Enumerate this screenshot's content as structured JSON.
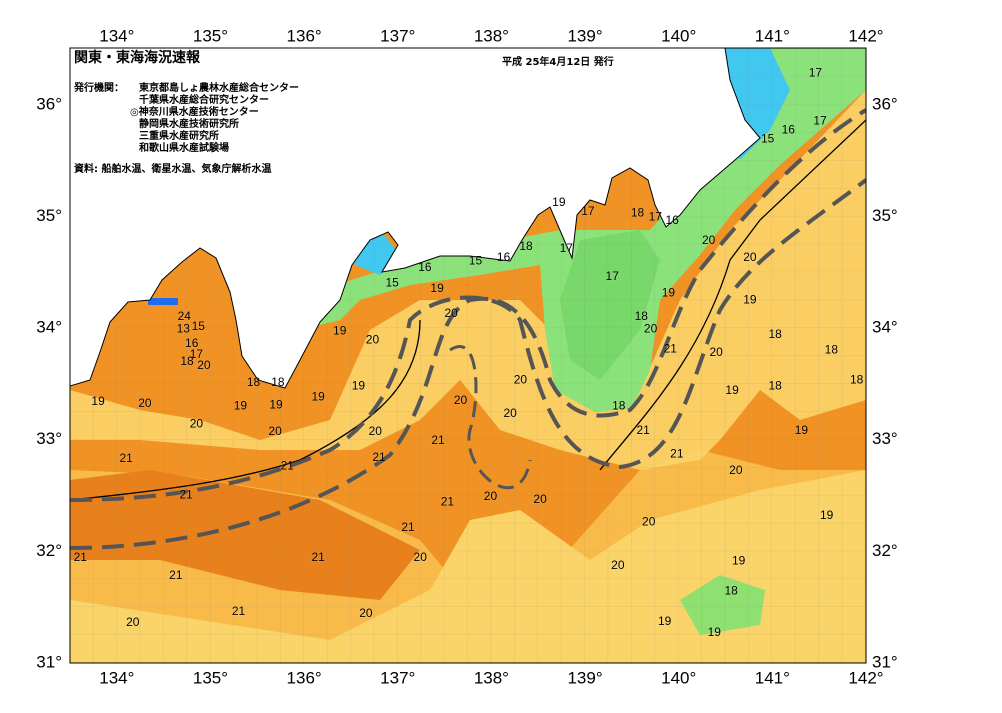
{
  "header": {
    "title": "関東・東海海況速報",
    "date": "平成 25年4月12日 発行",
    "agencies_label": "発行機関：",
    "agencies": [
      "東京都島しょ農林水産総合センター",
      "千葉県水産総合研究センター",
      "◎神奈川県水産技術センター",
      "静岡県水産技術研究所",
      "三重県水産研究所",
      "和歌山県水産試験場"
    ],
    "source": "資料: 船舶水温、衛星水温、気象庁解析水温"
  },
  "map": {
    "xlim": [
      133.5,
      142
    ],
    "ylim": [
      31,
      36.5
    ],
    "xticks": [
      {
        "value": 134,
        "label": "134°"
      },
      {
        "value": 135,
        "label": "135°"
      },
      {
        "value": 136,
        "label": "136°"
      },
      {
        "value": 137,
        "label": "137°"
      },
      {
        "value": 138,
        "label": "138°"
      },
      {
        "value": 139,
        "label": "139°"
      },
      {
        "value": 140,
        "label": "140°"
      },
      {
        "value": 141,
        "label": "141°"
      },
      {
        "value": 142,
        "label": "142°"
      }
    ],
    "yticks": [
      {
        "value": 31,
        "label": "31°"
      },
      {
        "value": 32,
        "label": "32°"
      },
      {
        "value": 33,
        "label": "33°"
      },
      {
        "value": 34,
        "label": "34°"
      },
      {
        "value": 35,
        "label": "35°"
      },
      {
        "value": 36,
        "label": "36°"
      }
    ],
    "contour_labels": [
      {
        "lon": 141.46,
        "lat": 36.28,
        "value": 17
      },
      {
        "lon": 141.17,
        "lat": 35.77,
        "value": 16
      },
      {
        "lon": 141.51,
        "lat": 35.85,
        "value": 17
      },
      {
        "lon": 140.95,
        "lat": 35.69,
        "value": 15
      },
      {
        "lon": 138.72,
        "lat": 35.12,
        "value": 19
      },
      {
        "lon": 139.03,
        "lat": 35.04,
        "value": 17
      },
      {
        "lon": 139.56,
        "lat": 35.03,
        "value": 18
      },
      {
        "lon": 139.75,
        "lat": 34.99,
        "value": 17
      },
      {
        "lon": 139.93,
        "lat": 34.96,
        "value": 16
      },
      {
        "lon": 140.32,
        "lat": 34.78,
        "value": 20
      },
      {
        "lon": 138.8,
        "lat": 34.71,
        "value": 17
      },
      {
        "lon": 138.37,
        "lat": 34.73,
        "value": 18
      },
      {
        "lon": 138.13,
        "lat": 34.63,
        "value": 16
      },
      {
        "lon": 137.83,
        "lat": 34.6,
        "value": 15
      },
      {
        "lon": 137.29,
        "lat": 34.54,
        "value": 16
      },
      {
        "lon": 136.94,
        "lat": 34.4,
        "value": 15
      },
      {
        "lon": 137.42,
        "lat": 34.35,
        "value": 19
      },
      {
        "lon": 140.76,
        "lat": 34.63,
        "value": 20
      },
      {
        "lon": 139.29,
        "lat": 34.46,
        "value": 17
      },
      {
        "lon": 139.89,
        "lat": 34.31,
        "value": 19
      },
      {
        "lon": 140.76,
        "lat": 34.25,
        "value": 19
      },
      {
        "lon": 137.57,
        "lat": 34.13,
        "value": 20
      },
      {
        "lon": 139.6,
        "lat": 34.1,
        "value": 18
      },
      {
        "lon": 139.7,
        "lat": 33.99,
        "value": 20
      },
      {
        "lon": 139.91,
        "lat": 33.81,
        "value": 21
      },
      {
        "lon": 140.4,
        "lat": 33.78,
        "value": 20
      },
      {
        "lon": 141.03,
        "lat": 33.94,
        "value": 18
      },
      {
        "lon": 141.63,
        "lat": 33.8,
        "value": 18
      },
      {
        "lon": 141.9,
        "lat": 33.53,
        "value": 18
      },
      {
        "lon": 141.03,
        "lat": 33.48,
        "value": 18
      },
      {
        "lon": 140.57,
        "lat": 33.44,
        "value": 19
      },
      {
        "lon": 136.38,
        "lat": 33.97,
        "value": 19
      },
      {
        "lon": 136.73,
        "lat": 33.89,
        "value": 20
      },
      {
        "lon": 138.31,
        "lat": 33.53,
        "value": 20
      },
      {
        "lon": 136.58,
        "lat": 33.48,
        "value": 19
      },
      {
        "lon": 136.15,
        "lat": 33.38,
        "value": 19
      },
      {
        "lon": 135.7,
        "lat": 33.31,
        "value": 19
      },
      {
        "lon": 135.32,
        "lat": 33.3,
        "value": 19
      },
      {
        "lon": 135.46,
        "lat": 33.51,
        "value": 18
      },
      {
        "lon": 135.72,
        "lat": 33.51,
        "value": 18
      },
      {
        "lon": 137.67,
        "lat": 33.35,
        "value": 20
      },
      {
        "lon": 139.36,
        "lat": 33.3,
        "value": 18
      },
      {
        "lon": 138.2,
        "lat": 33.23,
        "value": 20
      },
      {
        "lon": 139.62,
        "lat": 33.08,
        "value": 21
      },
      {
        "lon": 141.31,
        "lat": 33.08,
        "value": 19
      },
      {
        "lon": 136.76,
        "lat": 33.07,
        "value": 20
      },
      {
        "lon": 135.69,
        "lat": 33.07,
        "value": 20
      },
      {
        "lon": 134.85,
        "lat": 33.14,
        "value": 20
      },
      {
        "lon": 134.3,
        "lat": 33.32,
        "value": 20
      },
      {
        "lon": 133.8,
        "lat": 33.34,
        "value": 19
      },
      {
        "lon": 137.43,
        "lat": 32.99,
        "value": 21
      },
      {
        "lon": 139.98,
        "lat": 32.87,
        "value": 21
      },
      {
        "lon": 136.8,
        "lat": 32.84,
        "value": 21
      },
      {
        "lon": 135.82,
        "lat": 32.76,
        "value": 21
      },
      {
        "lon": 134.1,
        "lat": 32.83,
        "value": 21
      },
      {
        "lon": 140.61,
        "lat": 32.72,
        "value": 20
      },
      {
        "lon": 134.74,
        "lat": 32.5,
        "value": 21
      },
      {
        "lon": 137.53,
        "lat": 32.44,
        "value": 21
      },
      {
        "lon": 137.99,
        "lat": 32.49,
        "value": 20
      },
      {
        "lon": 138.52,
        "lat": 32.46,
        "value": 20
      },
      {
        "lon": 139.68,
        "lat": 32.26,
        "value": 20
      },
      {
        "lon": 141.58,
        "lat": 32.32,
        "value": 19
      },
      {
        "lon": 137.11,
        "lat": 32.21,
        "value": 21
      },
      {
        "lon": 133.61,
        "lat": 31.94,
        "value": 21
      },
      {
        "lon": 136.15,
        "lat": 31.94,
        "value": 21
      },
      {
        "lon": 137.24,
        "lat": 31.94,
        "value": 20
      },
      {
        "lon": 139.35,
        "lat": 31.87,
        "value": 20
      },
      {
        "lon": 140.64,
        "lat": 31.91,
        "value": 19
      },
      {
        "lon": 134.63,
        "lat": 31.78,
        "value": 21
      },
      {
        "lon": 140.56,
        "lat": 31.64,
        "value": 18
      },
      {
        "lon": 135.3,
        "lat": 31.46,
        "value": 21
      },
      {
        "lon": 136.66,
        "lat": 31.44,
        "value": 20
      },
      {
        "lon": 134.17,
        "lat": 31.36,
        "value": 20
      },
      {
        "lon": 139.85,
        "lat": 31.37,
        "value": 19
      },
      {
        "lon": 140.38,
        "lat": 31.27,
        "value": 19
      },
      {
        "lon": 134.72,
        "lat": 34.1,
        "value": 24
      },
      {
        "lon": 134.71,
        "lat": 33.99,
        "value": 13
      },
      {
        "lon": 134.87,
        "lat": 34.01,
        "value": 15
      },
      {
        "lon": 134.8,
        "lat": 33.86,
        "value": 16
      },
      {
        "lon": 134.85,
        "lat": 33.76,
        "value": 17
      },
      {
        "lon": 134.75,
        "lat": 33.7,
        "value": 18
      },
      {
        "lon": 134.93,
        "lat": 33.66,
        "value": 20
      }
    ]
  }
}
